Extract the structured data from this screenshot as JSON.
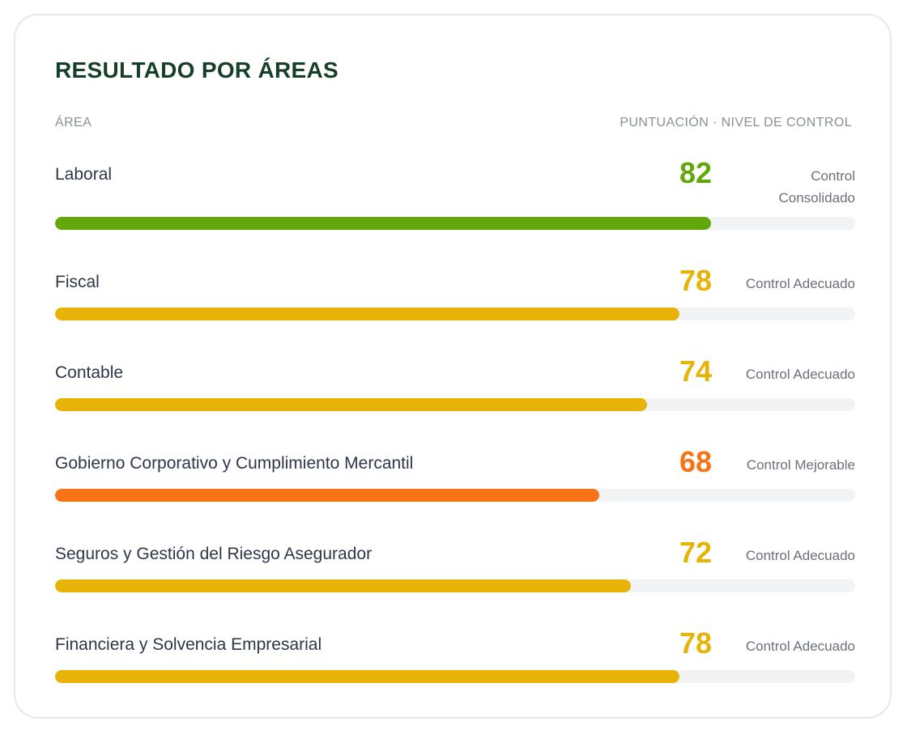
{
  "card": {
    "title": "RESULTADO POR ÁREAS",
    "col_area": "ÁREA",
    "col_score": "PUNTUACIÓN · NIVEL DE CONTROL"
  },
  "colors": {
    "green": "#63a70b",
    "yellow": "#e8b307",
    "orange": "#f97316",
    "track": "#f2f3f5"
  },
  "chart_data": {
    "type": "bar",
    "orientation": "horizontal",
    "title": "RESULTADO POR ÁREAS",
    "xlim": [
      0,
      100
    ],
    "categories": [
      "Laboral",
      "Fiscal",
      "Contable",
      "Gobierno Corporativo y Cumplimiento Mercantil",
      "Seguros y Gestión del Riesgo Asegurador",
      "Financiera y Solvencia Empresarial"
    ],
    "values": [
      82,
      78,
      74,
      68,
      72,
      78
    ],
    "levels": [
      "Control Consolidado",
      "Control Adecuado",
      "Control Adecuado",
      "Control Mejorable",
      "Control Adecuado",
      "Control Adecuado"
    ],
    "bar_colors": [
      "#63a70b",
      "#e8b307",
      "#e8b307",
      "#f97316",
      "#e8b307",
      "#e8b307"
    ]
  }
}
